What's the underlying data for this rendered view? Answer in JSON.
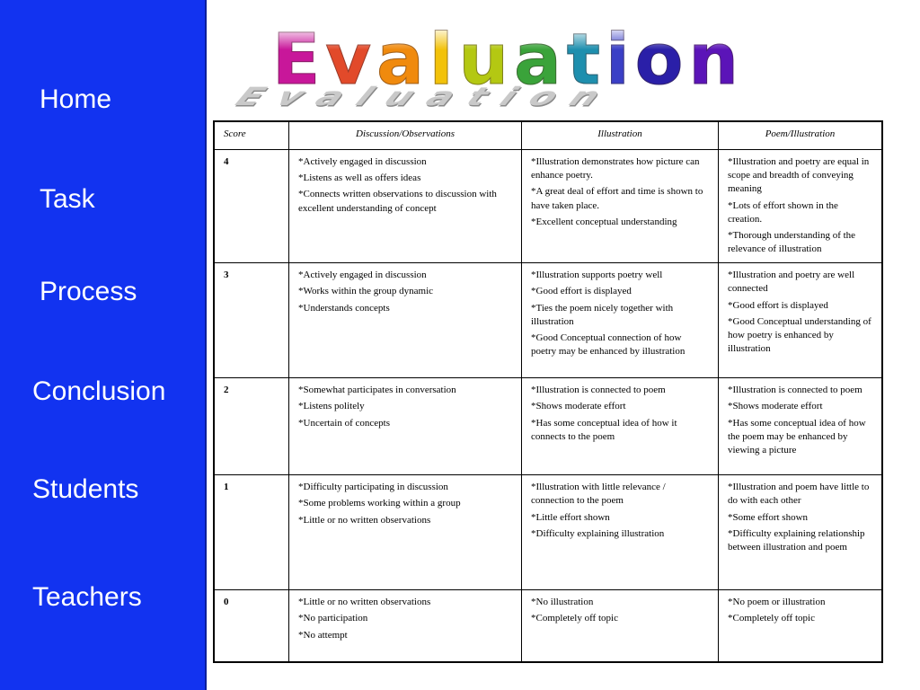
{
  "title": "Evaluation",
  "title_colors": [
    "#c8179a",
    "#e24a2a",
    "#f08a0d",
    "#f2c20a",
    "#b4c812",
    "#3aa33a",
    "#1e8fae",
    "#3a3fc6",
    "#2a1fa8",
    "#5b14b8"
  ],
  "colors": {
    "sidebar": "#1233f0",
    "nav_text": "#ffffff"
  },
  "sidebar": {
    "items": [
      {
        "label": "Home"
      },
      {
        "label": "Task"
      },
      {
        "label": "Process"
      },
      {
        "label": "Conclusion"
      },
      {
        "label": "Students"
      },
      {
        "label": "Teachers"
      }
    ]
  },
  "rubric": {
    "headers": [
      "Score",
      "Discussion/Observations",
      "Illustration",
      "Poem/Illustration"
    ],
    "rows": [
      {
        "score": "4",
        "discussion": [
          "*Actively engaged in discussion",
          "*Listens as well as offers ideas",
          "*Connects written observations to discussion with excellent understanding of concept"
        ],
        "illustration": [
          "*Illustration demonstrates how picture can enhance poetry.",
          "*A great deal of effort and time is shown to have taken place.",
          "*Excellent conceptual understanding"
        ],
        "poem": [
          "*Illustration and poetry are equal in scope and breadth of conveying meaning",
          "*Lots of effort shown in the creation.",
          "*Thorough understanding of the relevance of illustration"
        ]
      },
      {
        "score": "3",
        "discussion": [
          "*Actively engaged in discussion",
          "*Works within the group dynamic",
          "*Understands concepts"
        ],
        "illustration": [
          "*Illustration supports poetry well",
          "*Good effort is displayed",
          "*Ties the poem nicely together with illustration",
          "*Good Conceptual connection of how poetry may be enhanced by illustration"
        ],
        "poem": [
          "*Illustration and poetry are well connected",
          "*Good effort is displayed",
          "*Good Conceptual understanding of how poetry is enhanced by illustration"
        ]
      },
      {
        "score": "2",
        "discussion": [
          "*Somewhat participates in conversation",
          "*Listens politely",
          "*Uncertain of concepts"
        ],
        "illustration": [
          "*Illustration is connected to poem",
          "*Shows moderate effort",
          "*Has some conceptual idea of how it connects to the poem"
        ],
        "poem": [
          "*Illustration is connected to poem",
          "*Shows moderate effort",
          "*Has some conceptual idea of how the poem may be enhanced by viewing a picture"
        ]
      },
      {
        "score": "1",
        "discussion": [
          "*Difficulty participating in discussion",
          "*Some problems working within a group",
          "*Little or no written observations"
        ],
        "illustration": [
          "*Illustration with little relevance / connection to the poem",
          "*Little effort shown",
          "*Difficulty explaining illustration"
        ],
        "poem": [
          "*Illustration and poem have little to do with each other",
          "*Some effort shown",
          "*Difficulty explaining relationship between illustration and poem"
        ]
      },
      {
        "score": "0",
        "discussion": [
          "*Little or no written observations",
          "*No participation",
          "*No attempt"
        ],
        "illustration": [
          "*No illustration",
          "*Completely off topic"
        ],
        "poem": [
          "*No poem or illustration",
          "*Completely off topic"
        ]
      }
    ]
  }
}
